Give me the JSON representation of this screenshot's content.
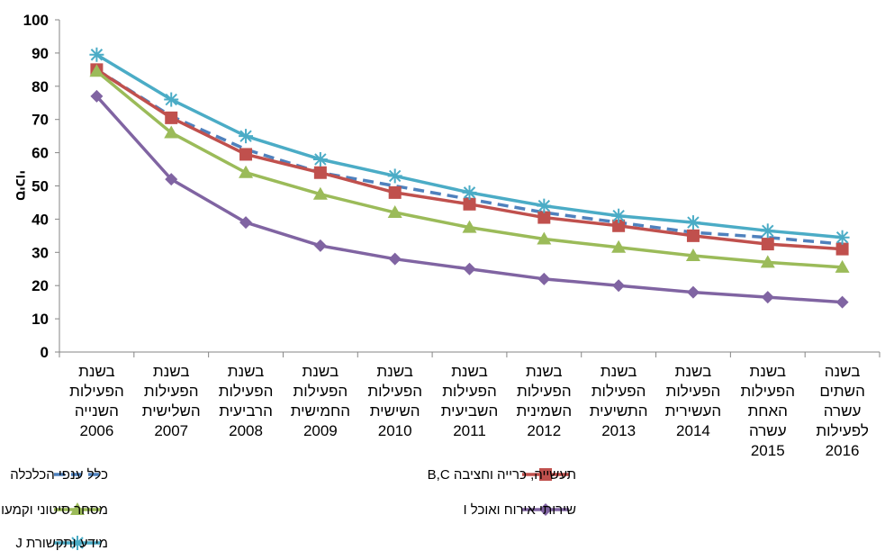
{
  "chart_data": {
    "type": "line",
    "title": "",
    "xlabel": "",
    "ylabel": "סיכוי",
    "ylim": [
      0,
      100
    ],
    "yticks": [
      0,
      10,
      20,
      30,
      40,
      50,
      60,
      70,
      80,
      90,
      100
    ],
    "grid": false,
    "legend_position": "bottom",
    "categories": [
      [
        "בשנת",
        "הפעילות",
        "השנייה",
        "2006"
      ],
      [
        "בשנת",
        "הפעילות",
        "השלישית",
        "2007"
      ],
      [
        "בשנת",
        "הפעילות",
        "הרביעית",
        "2008"
      ],
      [
        "בשנת",
        "הפעילות",
        "החמישית",
        "2009"
      ],
      [
        "בשנת",
        "הפעילות",
        "השישית",
        "2010"
      ],
      [
        "בשנת",
        "הפעילות",
        "השביעית",
        "2011"
      ],
      [
        "בשנת",
        "הפעילות",
        "השמינית",
        "2012"
      ],
      [
        "בשנת",
        "הפעילות",
        "התשיעית",
        "2013"
      ],
      [
        "בשנת",
        "הפעילות",
        "העשירית",
        "2014"
      ],
      [
        "בשנת",
        "הפעילות",
        "האחת",
        "עשרה",
        "2015"
      ],
      [
        "בשנה",
        "השתים",
        "עשרה",
        "לפעילות",
        "2016"
      ]
    ],
    "series": [
      {
        "name": "כלל ענפי הכלכלה",
        "color": "#4F81BD",
        "marker": "none",
        "dashed": true,
        "values": [
          85,
          71,
          61,
          54,
          50,
          46,
          42,
          39,
          36,
          34.5,
          32.5
        ]
      },
      {
        "name": "תעשייה, כרייה וחציבה B,C",
        "color": "#C0504D",
        "marker": "square",
        "dashed": false,
        "values": [
          85,
          70.5,
          59.5,
          54,
          48,
          44.5,
          40.5,
          38,
          35,
          32.5,
          31
        ]
      },
      {
        "name": "מסחר סיטוני וקמעוני ותיקון כלי רכב מנועיים G",
        "color": "#9BBB59",
        "marker": "triangle",
        "dashed": false,
        "values": [
          84.5,
          66,
          54,
          47.5,
          42,
          37.5,
          34,
          31.5,
          29,
          27,
          25.5
        ]
      },
      {
        "name": "שירותי אירוח ואוכל I",
        "color": "#8064A2",
        "marker": "diamond",
        "dashed": false,
        "values": [
          77,
          52,
          39,
          32,
          28,
          25,
          22,
          20,
          18,
          16.5,
          15
        ]
      },
      {
        "name": "מידע ותקשורת J",
        "color": "#4BACC6",
        "marker": "star",
        "dashed": false,
        "values": [
          89.5,
          76,
          65,
          58,
          53,
          48,
          44,
          41,
          39,
          36.5,
          34.5
        ]
      }
    ]
  }
}
